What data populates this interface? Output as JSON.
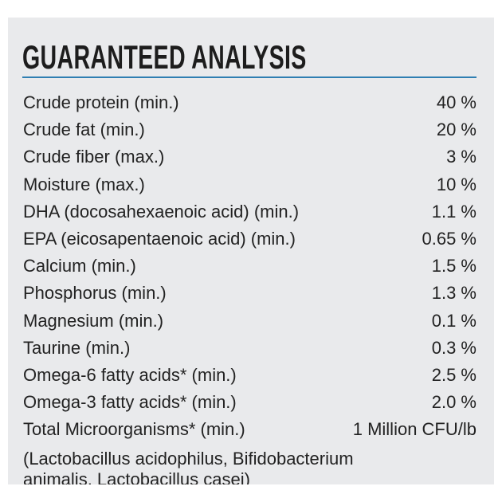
{
  "header": {
    "title": "GUARANTEED ANALYSIS"
  },
  "table": {
    "rows": [
      [
        "Crude protein (min.)",
        "40 %"
      ],
      [
        "Crude fat (min.)",
        "20 %"
      ],
      [
        "Crude fiber (max.)",
        "3 %"
      ],
      [
        "Moisture (max.)",
        "10 %"
      ],
      [
        "DHA (docosahexaenoic acid) (min.)",
        "1.1 %"
      ],
      [
        "EPA (eicosapentaenoic acid) (min.)",
        "0.65 %"
      ],
      [
        "Calcium (min.)",
        "1.5 %"
      ],
      [
        "Phosphorus (min.)",
        "1.3 %"
      ],
      [
        "Magnesium (min.)",
        "0.1 %"
      ],
      [
        "Taurine (min.)",
        "0.3 %"
      ],
      [
        "Omega-6 fatty acids* (min.)",
        "2.5 %"
      ],
      [
        "Omega-3 fatty acids* (min.)",
        "2.0 %"
      ],
      [
        "Total Microorganisms* (min.)",
        "1 Million CFU/lb"
      ]
    ]
  },
  "footnote": [
    "(Lactobacillus acidophilus, Bifidobacterium",
    "animalis, Lactobacillus casei)"
  ]
}
